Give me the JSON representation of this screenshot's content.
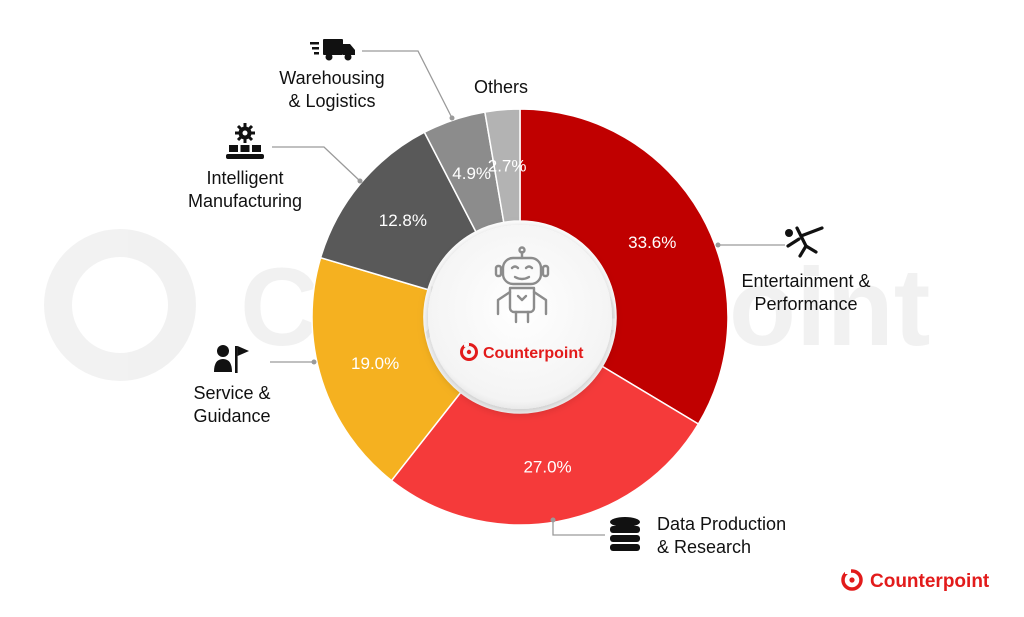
{
  "chart_data": {
    "type": "pie",
    "donut": true,
    "title": "",
    "slices": [
      {
        "label": "Entertainment & Performance",
        "value": 33.6,
        "value_text": "33.6%",
        "color": "#c00000",
        "icon": "kick-figure-icon"
      },
      {
        "label": "Data Production & Research",
        "value": 27.0,
        "value_text": "27.0%",
        "color": "#f53a3a",
        "icon": "database-icon"
      },
      {
        "label": "Service & Guidance",
        "value": 19.0,
        "value_text": "19.0%",
        "color": "#f5b120",
        "icon": "person-flag-icon"
      },
      {
        "label": "Intelligent Manufacturing",
        "value": 12.8,
        "value_text": "12.8%",
        "color": "#595959",
        "icon": "conveyor-gear-icon"
      },
      {
        "label": "Warehousing & Logistics",
        "value": 4.9,
        "value_text": "4.9%",
        "color": "#8c8c8c",
        "icon": "delivery-truck-icon"
      },
      {
        "label": "Others",
        "value": 2.7,
        "value_text": "2.7%",
        "color": "#b3b3b3",
        "icon": ""
      }
    ],
    "start_angle": "12 o'clock",
    "direction": "clockwise",
    "center_icon": "robot-icon",
    "labels": "outside with leader lines"
  },
  "labels": {
    "entertainment": [
      "Entertainment &",
      "Performance"
    ],
    "data": [
      "Data Production",
      "& Research"
    ],
    "service": [
      "Service &",
      "Guidance"
    ],
    "manufacturing": [
      "Intelligent",
      "Manufacturing"
    ],
    "warehousing": [
      "Warehousing",
      "& Logistics"
    ],
    "others": [
      "Others"
    ]
  },
  "brand": {
    "center": "Counterpoint",
    "footer": "Counterpoint",
    "color": "#e21b1b"
  }
}
